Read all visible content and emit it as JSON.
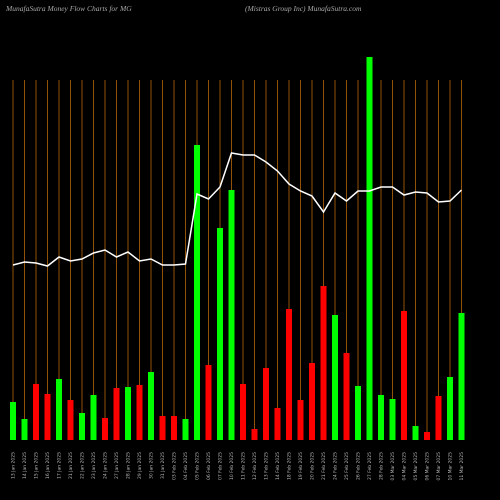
{
  "chart_data": {
    "type": "bar",
    "title": "MunafaSutra  Money Flow  Charts for MG",
    "subtitle": "(Mistras Group Inc) MunafaSutra.com",
    "categories": [
      "13 Jan 2025",
      "14 Jan 2025",
      "15 Jan 2025",
      "16 Jan 2025",
      "17 Jan 2025",
      "21 Jan 2025",
      "22 Jan 2025",
      "23 Jan 2025",
      "24 Jan 2025",
      "27 Jan 2025",
      "28 Jan 2025",
      "29 Jan 2025",
      "30 Jan 2025",
      "31 Jan 2025",
      "03 Feb 2025",
      "04 Feb 2025",
      "05 Feb 2025",
      "06 Feb 2025",
      "07 Feb 2025",
      "10 Feb 2025",
      "11 Feb 2025",
      "12 Feb 2025",
      "13 Feb 2025",
      "14 Feb 2025",
      "18 Feb 2025",
      "19 Feb 2025",
      "20 Feb 2025",
      "21 Feb 2025",
      "24 Feb 2025",
      "25 Feb 2025",
      "26 Feb 2025",
      "27 Feb 2025",
      "28 Feb 2025",
      "03 Mar 2025",
      "04 Mar 2025",
      "05 Mar 2025",
      "06 Mar 2025",
      "07 Mar 2025",
      "10 Mar 2025",
      "11 Mar 2025"
    ],
    "values": [
      38,
      21,
      56,
      46,
      61,
      40,
      27,
      45,
      22,
      52,
      53,
      55,
      68,
      24,
      24,
      21,
      295,
      75,
      212,
      250,
      56,
      11,
      72,
      32,
      131,
      40,
      77,
      154,
      125,
      87,
      54,
      383,
      45,
      41,
      129,
      14,
      8,
      44,
      63,
      127
    ],
    "colors": [
      "#00ff00",
      "#00ff00",
      "#ff0000",
      "#ff0000",
      "#00ff00",
      "#ff0000",
      "#00ff00",
      "#00ff00",
      "#ff0000",
      "#ff0000",
      "#00ff00",
      "#ff0000",
      "#00ff00",
      "#ff0000",
      "#ff0000",
      "#00ff00",
      "#00ff00",
      "#ff0000",
      "#00ff00",
      "#00ff00",
      "#ff0000",
      "#ff0000",
      "#ff0000",
      "#ff0000",
      "#ff0000",
      "#ff0000",
      "#ff0000",
      "#ff0000",
      "#00ff00",
      "#ff0000",
      "#00ff00",
      "#00ff00",
      "#00ff00",
      "#00ff00",
      "#ff0000",
      "#00ff00",
      "#ff0000",
      "#ff0000",
      "#00ff00",
      "#00ff00"
    ],
    "line": {
      "color": "#ffffff",
      "values": [
        175,
        178,
        177,
        174,
        183,
        179,
        181,
        187,
        190,
        183,
        188,
        179,
        181,
        175,
        175,
        176,
        246,
        241,
        253,
        287,
        285,
        285,
        278,
        269,
        256,
        249,
        244,
        228,
        247,
        239,
        249,
        249,
        253,
        253,
        245,
        248,
        247,
        238,
        239,
        250
      ]
    },
    "grid_color": "#b8660b",
    "ylim": [
      0,
      440
    ]
  }
}
